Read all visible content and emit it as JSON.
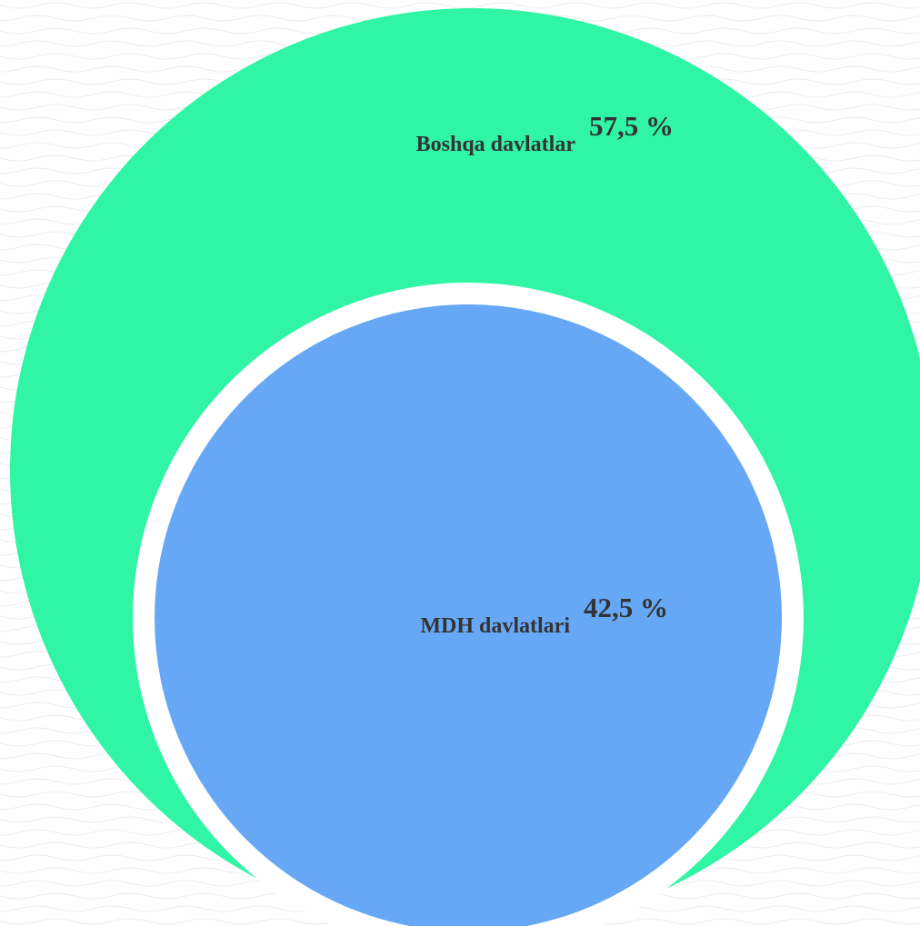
{
  "chart_data": {
    "type": "pie",
    "title": "",
    "slices": [
      {
        "label": "Boshqa davlatlar",
        "value_label": "57,5 %",
        "value": 57.5,
        "color": "#2ff5a5"
      },
      {
        "label": "MDH davlatlari",
        "value_label": "42,5 %",
        "value": 42.5,
        "color": "#66a8f5"
      }
    ],
    "background": {
      "color": "#ffffff",
      "pattern_color": "#ececec"
    },
    "label_color": "#333333"
  }
}
